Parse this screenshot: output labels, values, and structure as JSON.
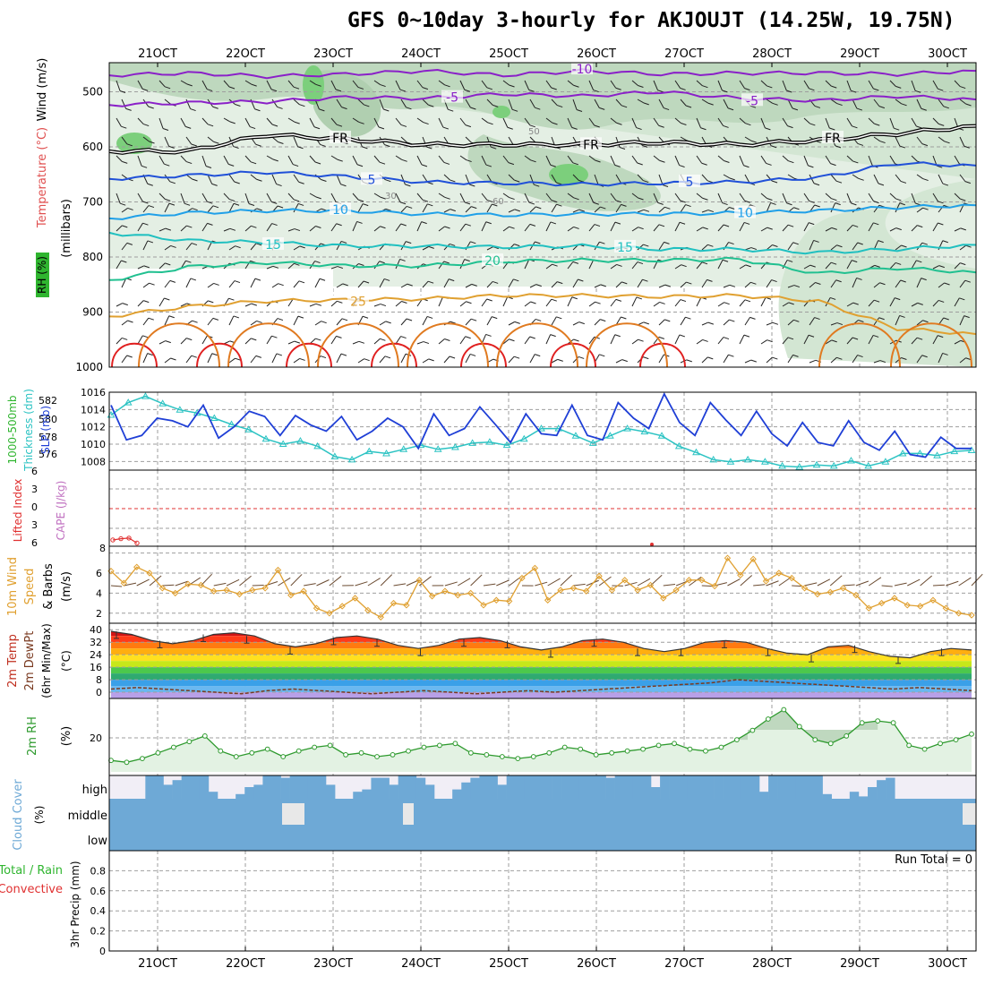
{
  "title": "GFS 0~10day 3-hourly for AKJOUJT (14.25W, 19.75N)",
  "x_ticks": [
    "21OCT",
    "22OCT",
    "23OCT",
    "24OCT",
    "25OCT",
    "26OCT",
    "27OCT",
    "28OCT",
    "29OCT",
    "30OCT"
  ],
  "colors": {
    "grid": "#9e9e9e",
    "rh_fill": "#2fb52f",
    "slp": "#1f3fd6",
    "thickness": "#2cc3c3",
    "wind": "#e0a030",
    "rh2m": "#2e9a2e",
    "cloud": "#6ea9d6",
    "cloud_bg": "#f1eef6",
    "lifted": "#e03030",
    "cape": "#c070c0"
  },
  "panels": {
    "upper": {
      "labels": [
        "RH (%)",
        "Temperature (°C)",
        "Wind (m/s)",
        "(millibars)"
      ],
      "y_ticks": [
        "500",
        "600",
        "700",
        "800",
        "900",
        "1000"
      ],
      "isotherms": [
        {
          "label": "-10",
          "color": "#8a20c8"
        },
        {
          "label": "-5",
          "color": "#8a20c8"
        },
        {
          "label": "FR",
          "color": "#000000"
        },
        {
          "label": "5",
          "color": "#2050d8"
        },
        {
          "label": "10",
          "color": "#20a0e8"
        },
        {
          "label": "15",
          "color": "#20c0c0"
        },
        {
          "label": "20",
          "color": "#20c090"
        },
        {
          "label": "25",
          "color": "#e0a030"
        }
      ],
      "rh_labels": [
        "30",
        "50",
        "60"
      ]
    },
    "slp": {
      "labels": [
        "1000-500mb",
        "Thickness (dm)",
        "SLP (mb)"
      ],
      "left_ticks": [
        "582",
        "580",
        "578",
        "576"
      ],
      "right_ticks": [
        "1016",
        "1014",
        "1012",
        "1010",
        "1008"
      ]
    },
    "li": {
      "labels": [
        "Lifted Index",
        "CAPE (J/kg)"
      ],
      "y_ticks": [
        "6",
        "3",
        "0",
        "3",
        "6"
      ],
      "right_tick": "8"
    },
    "wind10": {
      "labels": [
        "10m Wind",
        "Speed",
        "& Barbs",
        "(m/s)"
      ],
      "y_ticks": [
        "8",
        "6",
        "4",
        "2"
      ]
    },
    "temp2m": {
      "labels": [
        "2m Temp",
        "2m DewPt",
        "(6hr Min/Max)",
        "(°C)"
      ],
      "y_ticks": [
        "40",
        "32",
        "24",
        "16",
        "8",
        "0"
      ]
    },
    "rh2m": {
      "labels": [
        "2m RH",
        "(%)"
      ],
      "y_ticks": [
        "20"
      ]
    },
    "cloud": {
      "labels": [
        "Cloud Cover",
        "(%)"
      ],
      "layers": [
        "high",
        "middle",
        "low"
      ]
    },
    "precip": {
      "labels": [
        "Total / Rain",
        "Convective",
        "3hr Precip (mm)"
      ],
      "y_ticks": [
        "0.8",
        "0.6",
        "0.4",
        "0.2",
        "0"
      ],
      "run_total": "Run Total = 0"
    }
  },
  "chart_data": {
    "type": "line",
    "title": "GFS 0~10day 3-hourly for AKJOUJT (14.25W, 19.75N)",
    "x_start_hours": -9,
    "x_end_hours": 231,
    "series": [
      {
        "name": "SLP (mb)",
        "ylim": [
          1007,
          1016
        ],
        "values": [
          1014.5,
          1010.5,
          1011,
          1013,
          1012.7,
          1012,
          1014.5,
          1010.7,
          1012,
          1013.8,
          1013.2,
          1011,
          1013.3,
          1012.2,
          1011.5,
          1013.2,
          1010.5,
          1011.5,
          1013,
          1012,
          1009.5,
          1013.5,
          1011,
          1011.8,
          1014.3,
          1012.3,
          1010.2,
          1013.5,
          1011.2,
          1011,
          1014.5,
          1011,
          1010.5,
          1014.8,
          1013,
          1011.8,
          1015.8,
          1012.5,
          1011,
          1014.8,
          1012.8,
          1011,
          1013.8,
          1011.2,
          1009.8,
          1012.5,
          1010.2,
          1009.8,
          1012.7,
          1010.2,
          1009.3,
          1011.5,
          1008.8,
          1008.5,
          1010.8,
          1009.5,
          1009.5
        ]
      },
      {
        "name": "1000-500mb Thickness (dm)",
        "ylim": [
          575,
          582.5
        ],
        "values": [
          580.3,
          581.5,
          582.1,
          581.4,
          580.8,
          580.5,
          580,
          579.4,
          578.9,
          578,
          577.5,
          577.8,
          577.3,
          576.3,
          576,
          576.8,
          576.6,
          577,
          577.4,
          577,
          577.2,
          577.6,
          577.7,
          577.4,
          578,
          579,
          579,
          578.3,
          577.6,
          578.3,
          579,
          578.7,
          578.3,
          577.3,
          576.7,
          576,
          575.8,
          576,
          575.8,
          575.4,
          575.3,
          575.5,
          575.4,
          575.9,
          575.4,
          575.8,
          576.6,
          576.6,
          576.4,
          576.8,
          576.9
        ]
      },
      {
        "name": "10m Wind Speed (m/s)",
        "ylim": [
          1,
          8.5
        ],
        "values": [
          6.2,
          5,
          6.6,
          6,
          4.5,
          4,
          4.9,
          4.8,
          4.2,
          4.3,
          3.9,
          4.3,
          4.5,
          6.3,
          3.8,
          4.2,
          2.5,
          2,
          2.7,
          3.5,
          2.3,
          1.6,
          3,
          2.8,
          5.3,
          3.7,
          4.2,
          3.8,
          4,
          2.8,
          3.3,
          3.2,
          5.5,
          6.5,
          3.3,
          4.3,
          4.5,
          4.2,
          5.7,
          4.3,
          5.3,
          4.3,
          4.8,
          3.5,
          4.3,
          5.3,
          5.3,
          4.7,
          7.5,
          5.8,
          7.4,
          5.2,
          6,
          5.5,
          4.5,
          3.9,
          4.1,
          4.5,
          3.8,
          2.5,
          3,
          3.5,
          2.8,
          2.7,
          3.3,
          2.5,
          2,
          1.8
        ]
      },
      {
        "name": "2m Temp (°C)",
        "ylim": [
          -4,
          43
        ],
        "values": [
          39,
          37,
          33,
          31,
          33,
          37,
          38,
          36,
          31,
          29,
          31,
          35,
          36,
          34,
          30,
          28,
          30,
          34,
          35,
          33,
          29,
          27,
          29,
          33,
          34,
          32,
          28,
          26,
          28,
          32,
          33,
          32,
          28,
          25,
          24,
          29,
          30,
          26,
          23,
          22,
          26,
          28,
          27
        ]
      },
      {
        "name": "2m DewPt (°C)",
        "ylim": [
          -4,
          43
        ],
        "values": [
          2,
          3,
          2,
          1,
          0,
          -1,
          1,
          2,
          1,
          0,
          -1,
          0,
          1,
          0,
          -1,
          0,
          1,
          0,
          1,
          2,
          3,
          4,
          5,
          6,
          8,
          7,
          6,
          5,
          4,
          3,
          2,
          3,
          2,
          1
        ]
      },
      {
        "name": "2m RH (%)",
        "ylim": [
          0,
          40
        ],
        "values": [
          8,
          7,
          9,
          12,
          15,
          18,
          21,
          13,
          10,
          12,
          14,
          10,
          13,
          15,
          16,
          11,
          12,
          10,
          11,
          13,
          15,
          16,
          17,
          12,
          11,
          10,
          9,
          10,
          12,
          15,
          14,
          11,
          12,
          13,
          14,
          16,
          17,
          14,
          13,
          15,
          19,
          24,
          30,
          35,
          26,
          19,
          17,
          21,
          28,
          29,
          28,
          16,
          14,
          17,
          19,
          22
        ]
      },
      {
        "name": "Lifted Index",
        "ylim": [
          -6,
          6
        ],
        "values": [
          5,
          4.8,
          4.7,
          5.5
        ]
      },
      {
        "name": "3hr Precip (mm)",
        "ylim": [
          0,
          1
        ],
        "values": [
          0,
          0,
          0,
          0,
          0,
          0,
          0,
          0,
          0,
          0
        ]
      }
    ],
    "isotherm_pressures_mb": [
      {
        "label": "-10",
        "values": [
          470,
          466,
          472,
          468,
          462,
          470,
          462,
          468,
          466,
          466,
          468,
          462
        ]
      },
      {
        "label": "-5",
        "values": [
          524,
          520,
          518,
          510,
          512,
          504,
          508,
          500,
          512,
          516,
          508,
          514
        ]
      },
      {
        "label": "FR",
        "values": [
          608,
          608,
          578,
          586,
          596,
          596,
          596,
          592,
          596,
          588,
          576,
          562
        ]
      },
      {
        "label": "5",
        "values": [
          658,
          652,
          646,
          654,
          664,
          666,
          668,
          666,
          664,
          656,
          630,
          634
        ]
      },
      {
        "label": "10",
        "values": [
          730,
          720,
          716,
          716,
          722,
          724,
          722,
          722,
          720,
          716,
          710,
          706
        ]
      },
      {
        "label": "15",
        "values": [
          756,
          770,
          774,
          780,
          780,
          782,
          780,
          786,
          786,
          792,
          786,
          778
        ]
      },
      {
        "label": "20",
        "values": [
          842,
          818,
          810,
          816,
          816,
          808,
          806,
          806,
          804,
          830,
          820,
          828
        ]
      },
      {
        "label": "25",
        "values": [
          908,
          890,
          880,
          878,
          876,
          870,
          870,
          872,
          870,
          880,
          930,
          940
        ]
      }
    ]
  }
}
